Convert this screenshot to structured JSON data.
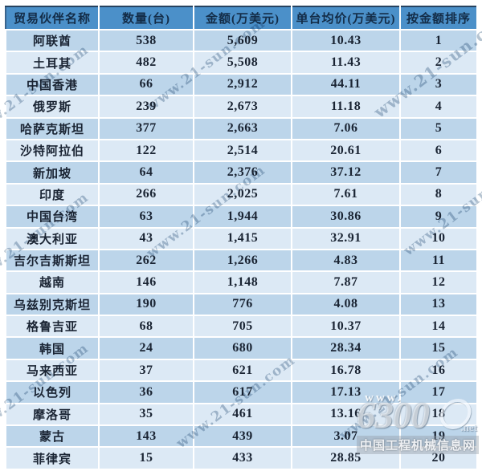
{
  "watermark": {
    "text": "www.21-sun.com"
  },
  "logo": {
    "www": "www.",
    "number": "6300",
    "net": ".net",
    "site_name": "中国工程机械信息网"
  },
  "colors": {
    "header_bg": "#4b90c9",
    "header_text": "#132c47",
    "row_odd_bg": "#bcd5ea",
    "row_even_bg": "#dce9f5",
    "cell_text": "#1a2433"
  },
  "table": {
    "headers": [
      "贸易伙伴名称",
      "数量(台)",
      "金额(万美元)",
      "单台均价(万美元)",
      "按金额排序"
    ],
    "rows": [
      [
        "阿联酋",
        "538",
        "5,609",
        "10.43",
        "1"
      ],
      [
        "土耳其",
        "482",
        "5,508",
        "11.43",
        "2"
      ],
      [
        "中国香港",
        "66",
        "2,912",
        "44.11",
        "3"
      ],
      [
        "俄罗斯",
        "239",
        "2,673",
        "11.18",
        "4"
      ],
      [
        "哈萨克斯坦",
        "377",
        "2,663",
        "7.06",
        "5"
      ],
      [
        "沙特阿拉伯",
        "122",
        "2,514",
        "20.61",
        "6"
      ],
      [
        "新加坡",
        "64",
        "2,376",
        "37.12",
        "7"
      ],
      [
        "印度",
        "266",
        "2,025",
        "7.61",
        "8"
      ],
      [
        "中国台湾",
        "63",
        "1,944",
        "30.86",
        "9"
      ],
      [
        "澳大利亚",
        "43",
        "1,415",
        "32.91",
        "10"
      ],
      [
        "吉尔吉斯斯坦",
        "262",
        "1,266",
        "4.83",
        "11"
      ],
      [
        "越南",
        "146",
        "1,148",
        "7.87",
        "12"
      ],
      [
        "乌兹别克斯坦",
        "190",
        "776",
        "4.08",
        "13"
      ],
      [
        "格鲁吉亚",
        "68",
        "705",
        "10.37",
        "14"
      ],
      [
        "韩国",
        "24",
        "680",
        "28.34",
        "15"
      ],
      [
        "马来西亚",
        "37",
        "621",
        "16.78",
        "16"
      ],
      [
        "以色列",
        "36",
        "617",
        "17.13",
        "17"
      ],
      [
        "摩洛哥",
        "35",
        "461",
        "13.16",
        "18"
      ],
      [
        "蒙古",
        "143",
        "439",
        "3.07",
        "19"
      ],
      [
        "菲律宾",
        "15",
        "433",
        "28.85",
        "20"
      ]
    ]
  }
}
